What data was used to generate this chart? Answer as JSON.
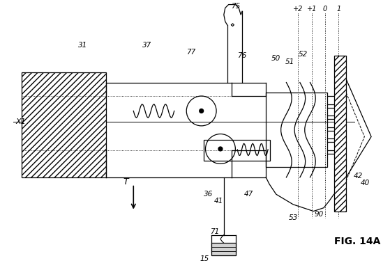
{
  "title": "FIG. 14A",
  "bg_color": "#ffffff",
  "fig_width": 5.59,
  "fig_height": 3.78,
  "dpi": 100
}
